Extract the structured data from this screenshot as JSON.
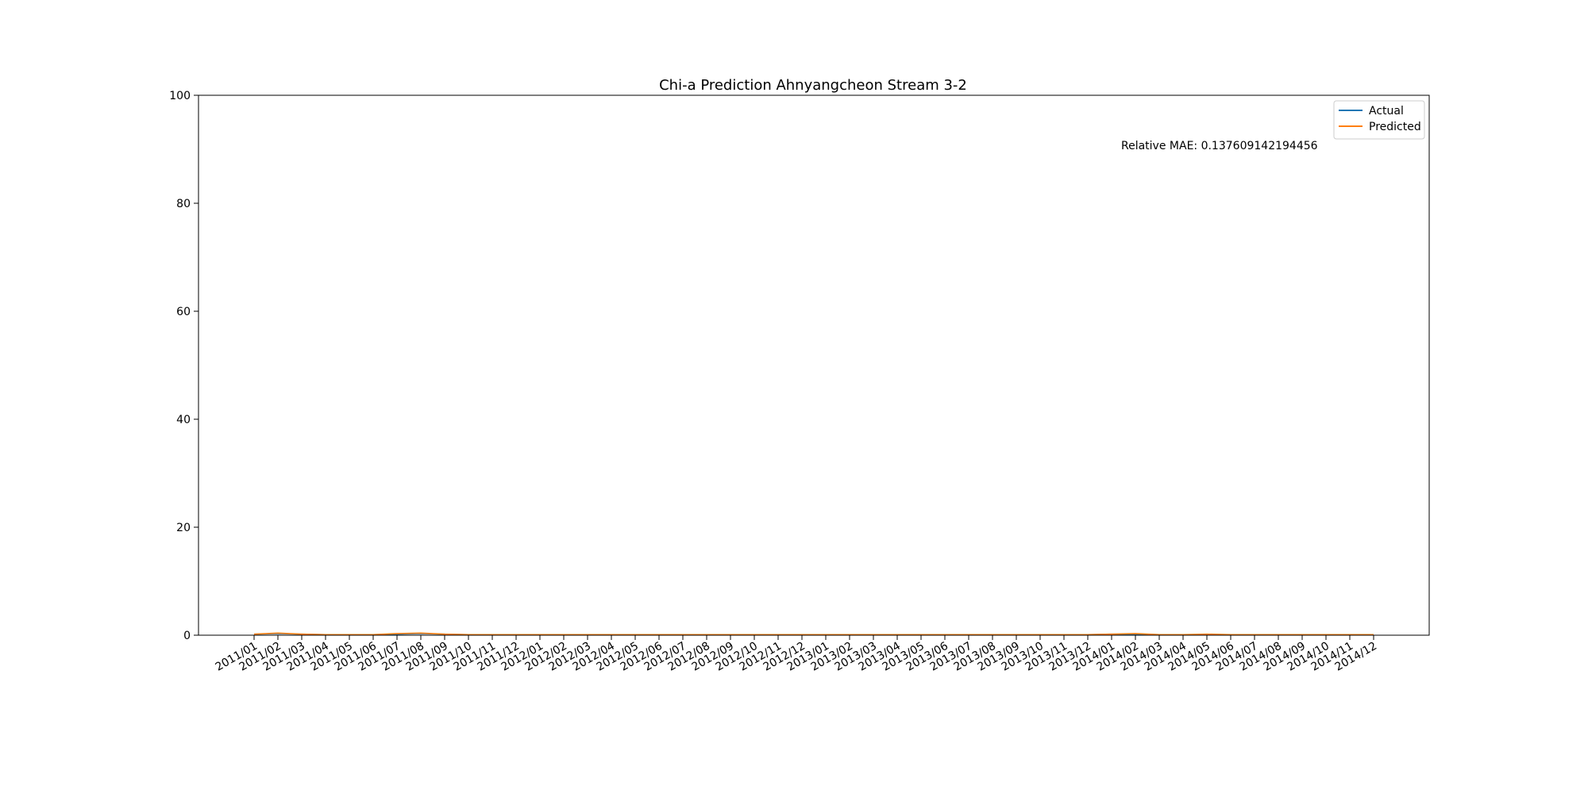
{
  "chart_data": {
    "type": "line",
    "title": "Chi-a Prediction Ahnyangcheon Stream 3-2",
    "xlabel": "",
    "ylabel": "",
    "ylim": [
      0,
      100
    ],
    "yticks": [
      0,
      20,
      40,
      60,
      80,
      100
    ],
    "x": [
      "2011/01",
      "2011/02",
      "2011/03",
      "2011/04",
      "2011/05",
      "2011/06",
      "2011/07",
      "2011/08",
      "2011/09",
      "2011/10",
      "2011/11",
      "2011/12",
      "2012/01",
      "2012/02",
      "2012/03",
      "2012/04",
      "2012/05",
      "2012/06",
      "2012/07",
      "2012/08",
      "2012/09",
      "2012/10",
      "2012/11",
      "2012/12",
      "2013/01",
      "2013/02",
      "2013/03",
      "2013/04",
      "2013/05",
      "2013/06",
      "2013/07",
      "2013/08",
      "2013/09",
      "2013/10",
      "2013/11",
      "2013/12",
      "2014/01",
      "2014/02",
      "2014/03",
      "2014/04",
      "2014/05",
      "2014/06",
      "2014/07",
      "2014/08",
      "2014/09",
      "2014/10",
      "2014/11",
      "2014/12"
    ],
    "series": [
      {
        "name": "Actual",
        "color": "#1f77b4",
        "values": [
          0.2,
          0.3,
          0.2,
          0.1,
          0.1,
          0.1,
          0.2,
          0.3,
          0.2,
          0.1,
          0.1,
          0.1,
          0.1,
          0.1,
          0.1,
          0.1,
          0.1,
          0.1,
          0.1,
          0.1,
          0.1,
          0.1,
          0.1,
          0.1,
          0.1,
          0.1,
          0.1,
          0.1,
          0.1,
          0.1,
          0.1,
          0.1,
          0.1,
          0.1,
          0.1,
          0.1,
          0.2,
          0.2,
          0.1,
          0.1,
          0.1,
          0.1,
          0.1,
          0.1,
          0.1,
          0.1,
          0.1,
          0.1
        ]
      },
      {
        "name": "Predicted",
        "color": "#ff7f0e",
        "values": [
          0.2,
          0.4,
          0.2,
          0.1,
          0.1,
          0.1,
          0.3,
          0.4,
          0.2,
          0.1,
          0.1,
          0.1,
          0.1,
          0.1,
          0.1,
          0.1,
          0.1,
          0.1,
          0.1,
          0.1,
          0.1,
          0.1,
          0.1,
          0.1,
          0.1,
          0.1,
          0.1,
          0.1,
          0.1,
          0.1,
          0.1,
          0.1,
          0.1,
          0.1,
          0.1,
          0.1,
          0.2,
          0.3,
          0.1,
          0.1,
          0.2,
          0.1,
          0.1,
          0.1,
          0.1,
          0.1,
          0.1,
          0.1
        ]
      }
    ],
    "grid": false,
    "legend": "top-right",
    "annotation": "Relative MAE: 0.137609142194456"
  }
}
